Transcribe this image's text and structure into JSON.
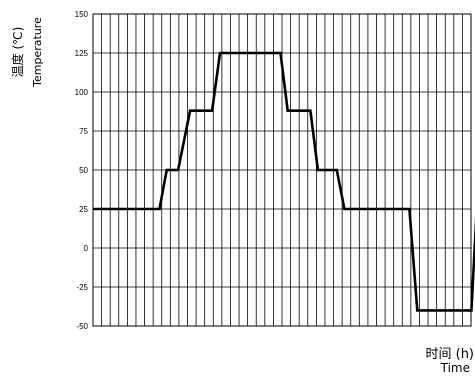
{
  "chart_data": {
    "type": "line",
    "ylabel_cn": "温度 (℃)",
    "ylabel_en": "Temperature",
    "xlabel_cn": "时间 (h)",
    "xlabel_en": "Time",
    "ylim": [
      -50,
      150
    ],
    "yticks": [
      150,
      125,
      100,
      75,
      50,
      25,
      0,
      -25,
      -50
    ],
    "ytick_labels": [
      "150",
      "125",
      "100",
      "75",
      "50",
      "25",
      "0",
      "-25",
      "-50"
    ],
    "xlim": [
      0,
      100
    ],
    "grid": true,
    "series": [
      {
        "x": [
          0,
          17.6,
          19.5,
          22.5,
          25.7,
          31.5,
          33.6,
          49.6,
          51.5,
          57.5,
          59.5,
          64.5,
          66.5,
          83.7,
          85.8,
          100.1,
          101.5
        ],
        "y": [
          25,
          25,
          50,
          50,
          88,
          88,
          125,
          125,
          88,
          88,
          50,
          50,
          25,
          25,
          -40,
          -40,
          25
        ]
      }
    ]
  }
}
